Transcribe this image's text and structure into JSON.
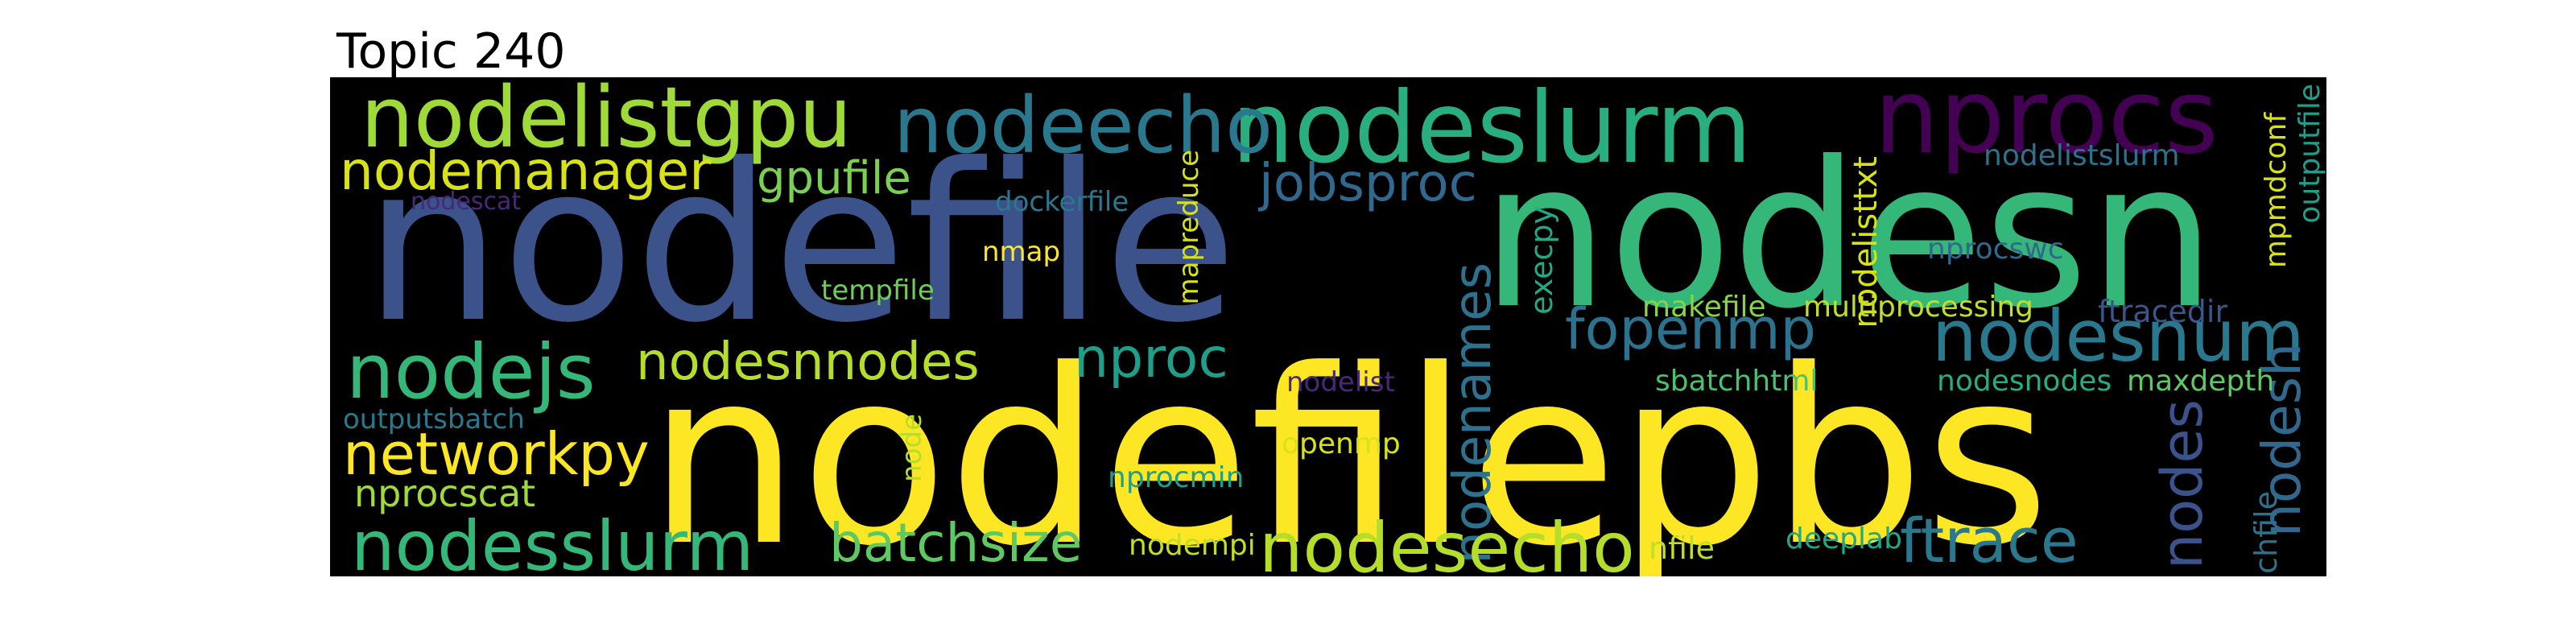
{
  "title": "Topic 240",
  "colors": {
    "background": "#000000",
    "title": "#000000"
  },
  "words": [
    {
      "text": "nodefilepbs",
      "color": "#fde725"
    },
    {
      "text": "nodefile",
      "color": "#3b528b"
    },
    {
      "text": "nodesn",
      "color": "#35b779"
    },
    {
      "text": "nodeslurm",
      "color": "#29af7f"
    },
    {
      "text": "nprocs",
      "color": "#440154"
    },
    {
      "text": "nodelistgpu",
      "color": "#a0da39"
    },
    {
      "text": "nodeecho",
      "color": "#2a788e"
    },
    {
      "text": "nodemanager",
      "color": "#d8e219"
    },
    {
      "text": "gpufile",
      "color": "#7ad151"
    },
    {
      "text": "jobsproc",
      "color": "#31688e"
    },
    {
      "text": "nodescat",
      "color": "#482878"
    },
    {
      "text": "dockerfile",
      "color": "#2a788e"
    },
    {
      "text": "nmap",
      "color": "#fde725"
    },
    {
      "text": "mapreduce",
      "color": "#d8e219"
    },
    {
      "text": "tempfile",
      "color": "#6ece58"
    },
    {
      "text": "nodejs",
      "color": "#35b779"
    },
    {
      "text": "nodesnnodes",
      "color": "#b5de2b"
    },
    {
      "text": "nproc",
      "color": "#1f9e89"
    },
    {
      "text": "nodenames",
      "color": "#2c728e"
    },
    {
      "text": "execpy",
      "color": "#22a884"
    },
    {
      "text": "nodelisttxt",
      "color": "#d8e219"
    },
    {
      "text": "makefile",
      "color": "#86d549"
    },
    {
      "text": "multiprocessing",
      "color": "#c2df23"
    },
    {
      "text": "fopenmp",
      "color": "#2c728e"
    },
    {
      "text": "nodesnum",
      "color": "#2a788e"
    },
    {
      "text": "nprocswc",
      "color": "#31688e"
    },
    {
      "text": "ftracedir",
      "color": "#39568c"
    },
    {
      "text": "nodelistslurm",
      "color": "#2c728e"
    },
    {
      "text": "mpmdconf",
      "color": "#d8e219"
    },
    {
      "text": "outputfile",
      "color": "#1f9e89"
    },
    {
      "text": "nodesh",
      "color": "#31688e"
    },
    {
      "text": "nodelist",
      "color": "#482878"
    },
    {
      "text": "sbatchhtml",
      "color": "#4ac16d"
    },
    {
      "text": "nodesnodes",
      "color": "#26ad81"
    },
    {
      "text": "maxdepth",
      "color": "#5ec962"
    },
    {
      "text": "outputsbatch",
      "color": "#2a788e"
    },
    {
      "text": "networkpy",
      "color": "#fde725"
    },
    {
      "text": "nprocscat",
      "color": "#a0da39"
    },
    {
      "text": "node",
      "color": "#b5de2b"
    },
    {
      "text": "nprocmin",
      "color": "#1f9e89"
    },
    {
      "text": "openmp",
      "color": "#d8e219"
    },
    {
      "text": "nodes",
      "color": "#3b528b"
    },
    {
      "text": "eachfile",
      "color": "#2c728e"
    },
    {
      "text": "nodesslurm",
      "color": "#35b779"
    },
    {
      "text": "batchsize",
      "color": "#5ec962"
    },
    {
      "text": "nodempi",
      "color": "#c2df23"
    },
    {
      "text": "nodesecho",
      "color": "#b5de2b"
    },
    {
      "text": "nfile",
      "color": "#bddf26"
    },
    {
      "text": "deeplab",
      "color": "#22a884"
    },
    {
      "text": "ftrace",
      "color": "#2a788e"
    }
  ]
}
